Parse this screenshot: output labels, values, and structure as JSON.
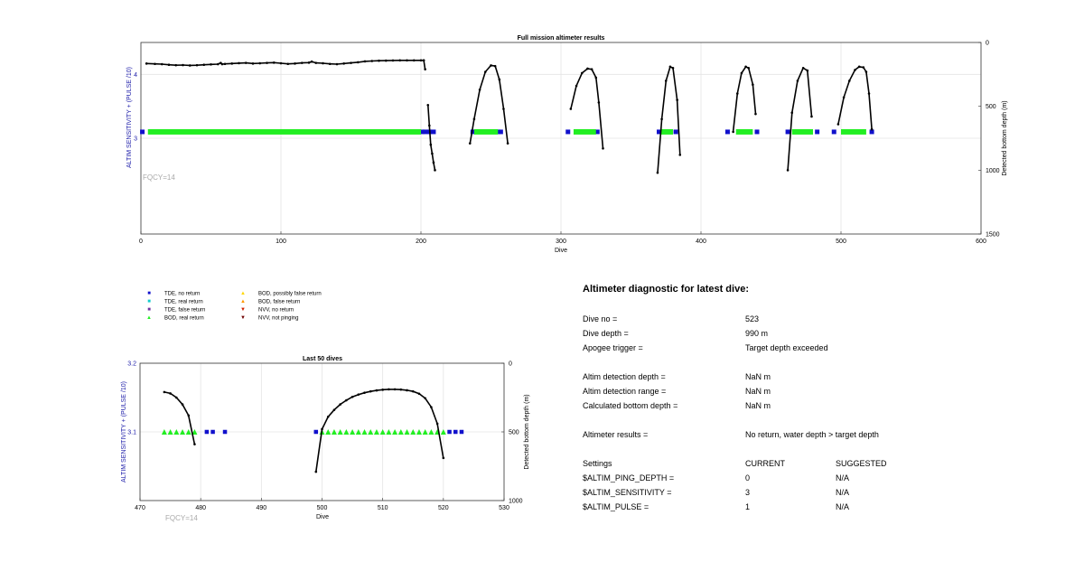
{
  "colors": {
    "axis_left": "#1a1aa8",
    "green": "#22ee22",
    "blue": "#1010cc",
    "cyan": "#10cccc",
    "purple": "#7030a0",
    "yellow": "#ffd700",
    "orange": "#ff9800",
    "red": "#d02000",
    "darkred": "#700000",
    "grey_text": "#aaaaaa",
    "grid": "#e4e4e4"
  },
  "chart_data": [
    {
      "type": "line",
      "title": "Full mission altimeter results",
      "xlabel": "Dive",
      "ylabel_left": "ALTIM SENSITIVITY + (PULSE /10)",
      "ylabel_right": "Detected bottom depth (m)",
      "annotation": "FQCY=14",
      "xlim": [
        0,
        600
      ],
      "xticks": [
        "0",
        "100",
        "200",
        "300",
        "400",
        "500",
        "600"
      ],
      "xtick_values": [
        0,
        100,
        200,
        300,
        400,
        500,
        600
      ],
      "ylim_left": [
        1.5,
        4.5
      ],
      "yticks_left": [
        "3",
        "4"
      ],
      "ytick_left_values": [
        3,
        4
      ],
      "ylim_right": [
        0,
        1500
      ],
      "yticks_right": [
        "0",
        "500",
        "1000",
        "1500"
      ],
      "ytick_right_values": [
        0,
        500,
        1000,
        1500
      ],
      "grid": true,
      "bottom_depth_series": [
        {
          "name": "",
          "x": [
            4,
            10,
            15,
            20,
            25,
            30,
            35,
            40,
            45,
            50,
            55,
            57,
            58,
            60,
            65,
            70,
            75,
            80,
            85,
            90,
            95,
            100,
            105,
            110,
            115,
            120,
            122,
            125,
            130,
            135,
            140,
            145,
            150,
            155,
            160,
            165,
            170,
            175,
            180,
            185,
            190,
            195,
            200,
            202
          ],
          "y": [
            165,
            168,
            170,
            175,
            178,
            177,
            180,
            178,
            175,
            172,
            170,
            160,
            170,
            168,
            165,
            162,
            160,
            165,
            163,
            160,
            158,
            163,
            168,
            165,
            160,
            158,
            150,
            160,
            163,
            168,
            170,
            165,
            160,
            155,
            148,
            145,
            143,
            142,
            141,
            140,
            140,
            140,
            140,
            140
          ]
        },
        {
          "name": "",
          "x": [
            202,
            203
          ],
          "y": [
            140,
            210
          ]
        },
        {
          "name": "",
          "x": [
            205,
            206,
            207,
            208,
            209,
            210
          ],
          "y": [
            490,
            650,
            800,
            870,
            940,
            1000
          ]
        },
        {
          "name": "",
          "x": [
            235,
            238,
            242,
            246,
            250,
            253,
            256,
            259,
            262
          ],
          "y": [
            790,
            600,
            370,
            230,
            180,
            185,
            290,
            520,
            790
          ]
        },
        {
          "name": "",
          "x": [
            307,
            311,
            315,
            319,
            322,
            325,
            327,
            330
          ],
          "y": [
            520,
            340,
            240,
            205,
            210,
            275,
            470,
            830
          ]
        },
        {
          "name": "",
          "x": [
            369,
            372,
            375,
            378,
            380,
            383,
            385
          ],
          "y": [
            1020,
            600,
            300,
            190,
            200,
            450,
            880
          ]
        },
        {
          "name": "",
          "x": [
            423,
            426,
            429,
            432,
            434,
            437,
            439
          ],
          "y": [
            700,
            400,
            240,
            190,
            200,
            330,
            560
          ]
        },
        {
          "name": "",
          "x": [
            462,
            465,
            469,
            473,
            476,
            479
          ],
          "y": [
            1000,
            550,
            300,
            200,
            220,
            580
          ]
        },
        {
          "name": "",
          "x": [
            498,
            502,
            506,
            510,
            513,
            516,
            518,
            520,
            522
          ],
          "y": [
            640,
            430,
            300,
            215,
            190,
            195,
            230,
            400,
            680
          ]
        }
      ],
      "tde_no_return_dives": [
        1,
        201,
        203,
        206,
        209,
        237,
        255,
        257,
        305,
        326,
        370,
        382,
        419,
        440,
        462,
        483,
        495,
        522
      ],
      "bod_real_return_ranges": [
        [
          5,
          200
        ],
        [
          238,
          255
        ],
        [
          309,
          325
        ],
        [
          371,
          380
        ],
        [
          425,
          437
        ],
        [
          465,
          480
        ],
        [
          500,
          518
        ]
      ],
      "marker_level_left": 3.1
    },
    {
      "type": "line",
      "title": "Last 50 dives",
      "xlabel": "Dive",
      "ylabel_left": "ALTIM SENSITIVITY + (PULSE /10)",
      "ylabel_right": "Detected bottom depth (m)",
      "annotation": "FQCY=14",
      "xlim": [
        470,
        530
      ],
      "xticks": [
        "470",
        "480",
        "490",
        "500",
        "510",
        "520",
        "530"
      ],
      "xtick_values": [
        470,
        480,
        490,
        500,
        510,
        520,
        530
      ],
      "ylim_left": [
        3.0,
        3.2
      ],
      "yticks_left": [
        "3.1",
        "3.2"
      ],
      "ytick_left_values": [
        3.1,
        3.2
      ],
      "ylim_right": [
        0,
        1000
      ],
      "yticks_right": [
        "0",
        "500",
        "1000"
      ],
      "ytick_right_values": [
        0,
        500,
        1000
      ],
      "grid": true,
      "bottom_depth_series": [
        {
          "name": "",
          "x": [
            474,
            475,
            476,
            477,
            478,
            479
          ],
          "y": [
            210,
            220,
            250,
            300,
            380,
            590
          ]
        },
        {
          "name": "",
          "x": [
            499,
            500,
            501,
            502,
            503,
            504,
            505,
            506,
            507,
            508,
            509,
            510,
            511,
            512,
            513,
            514,
            515,
            516,
            517,
            518,
            519,
            520
          ],
          "y": [
            790,
            480,
            390,
            340,
            300,
            270,
            245,
            228,
            215,
            205,
            198,
            193,
            190,
            190,
            192,
            197,
            205,
            222,
            255,
            320,
            440,
            690
          ]
        }
      ],
      "tde_no_return_dives": [
        481,
        482,
        484,
        499,
        521,
        522,
        523
      ],
      "bod_real_return_dives": [
        474,
        475,
        476,
        477,
        478,
        479,
        500,
        501,
        502,
        503,
        504,
        505,
        506,
        507,
        508,
        509,
        510,
        511,
        512,
        513,
        514,
        515,
        516,
        517,
        518,
        519,
        520
      ],
      "marker_level_left": 3.1
    }
  ],
  "legend": {
    "tde_no_return": "TDE, no return",
    "tde_real_return": "TDE, real return",
    "tde_false_return": "TDE, false return",
    "bod_real_return": "BOD, real return",
    "bod_possibly_false": "BOD, possibly false return",
    "bod_false_return": "BOD, false return",
    "nvv_no_return": "NVV, no return",
    "nvv_not_pinging": "NVV, not pinging"
  },
  "diagnostic": {
    "title": "Altimeter diagnostic for latest dive:",
    "dive_no_label": "Dive no =",
    "dive_no_value": "523",
    "dive_depth_label": "Dive depth =",
    "dive_depth_value": "990 m",
    "apogee_label": "Apogee trigger =",
    "apogee_value": "Target depth exceeded",
    "detection_depth_label": "Altim detection depth =",
    "detection_depth_value": "NaN m",
    "detection_range_label": "Altim detection range =",
    "detection_range_value": "NaN m",
    "bottom_depth_label": "Calculated bottom depth =",
    "bottom_depth_value": "NaN m",
    "results_label": "Altimeter results =",
    "results_value": "No return, water depth > target depth",
    "settings_label": "Settings",
    "current_header": "CURRENT",
    "suggested_header": "SUGGESTED",
    "ping_depth_label": "$ALTIM_PING_DEPTH =",
    "ping_depth_current": "0",
    "ping_depth_suggested": "N/A",
    "sensitivity_label": "$ALTIM_SENSITIVITY =",
    "sensitivity_current": "3",
    "sensitivity_suggested": "N/A",
    "pulse_label": "$ALTIM_PULSE =",
    "pulse_current": "1",
    "pulse_suggested": "N/A"
  }
}
